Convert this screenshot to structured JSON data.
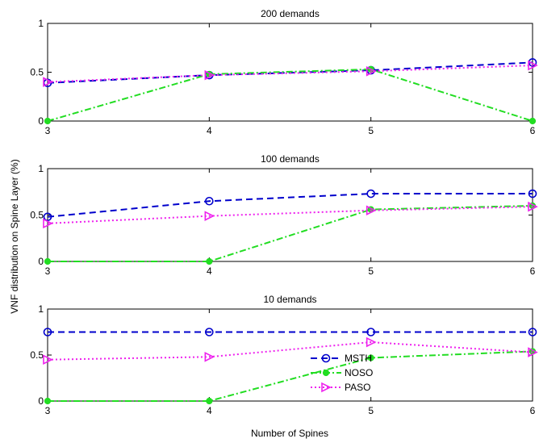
{
  "ylabel": "VNF distribution on Spine Layer (%)",
  "xlabel": "Number of Spines",
  "legend": [
    {
      "name": "MSTH",
      "color": "#0000cc",
      "dash": "8,5",
      "marker": "circle"
    },
    {
      "name": "NOSO",
      "color": "#22dd22",
      "dash": "8,3,2,3",
      "marker": "dot"
    },
    {
      "name": "PASO",
      "color": "#ee22ee",
      "dash": "2,3",
      "marker": "triangle"
    }
  ],
  "chart_data": [
    {
      "type": "line",
      "title": "200 demands",
      "x": [
        3,
        4,
        5,
        6
      ],
      "xticks": [
        "3",
        "4",
        "5",
        "6"
      ],
      "yticks": [
        "0",
        "0.5",
        "1"
      ],
      "xlim": [
        3,
        6
      ],
      "ylim": [
        0,
        1
      ],
      "series": [
        {
          "name": "MSTH",
          "values": [
            0.39,
            0.47,
            0.52,
            0.6
          ]
        },
        {
          "name": "NOSO",
          "values": [
            0.0,
            0.48,
            0.53,
            0.0
          ]
        },
        {
          "name": "PASO",
          "values": [
            0.4,
            0.47,
            0.51,
            0.57
          ]
        }
      ]
    },
    {
      "type": "line",
      "title": "100 demands",
      "x": [
        3,
        4,
        5,
        6
      ],
      "xticks": [
        "3",
        "4",
        "5",
        "6"
      ],
      "yticks": [
        "0",
        "0.5",
        "1"
      ],
      "xlim": [
        3,
        6
      ],
      "ylim": [
        0,
        1
      ],
      "series": [
        {
          "name": "MSTH",
          "values": [
            0.48,
            0.65,
            0.73,
            0.73
          ]
        },
        {
          "name": "NOSO",
          "values": [
            0.0,
            0.0,
            0.56,
            0.6
          ]
        },
        {
          "name": "PASO",
          "values": [
            0.41,
            0.49,
            0.55,
            0.59
          ]
        }
      ]
    },
    {
      "type": "line",
      "title": "10 demands",
      "x": [
        3,
        4,
        5,
        6
      ],
      "xticks": [
        "3",
        "4",
        "5",
        "6"
      ],
      "yticks": [
        "0",
        "0.5",
        "1"
      ],
      "xlim": [
        3,
        6
      ],
      "ylim": [
        0,
        1
      ],
      "legend_position": "bottom-center",
      "series": [
        {
          "name": "MSTH",
          "values": [
            0.75,
            0.75,
            0.75,
            0.75
          ]
        },
        {
          "name": "NOSO",
          "values": [
            0.0,
            0.0,
            0.47,
            0.54
          ]
        },
        {
          "name": "PASO",
          "values": [
            0.45,
            0.48,
            0.64,
            0.53
          ]
        }
      ]
    }
  ]
}
